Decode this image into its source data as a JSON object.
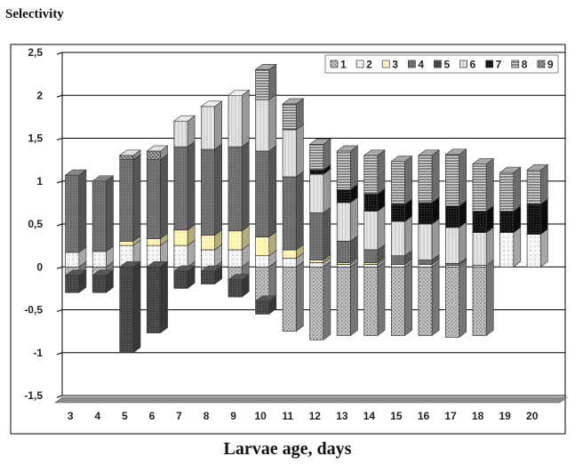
{
  "chart_data": {
    "type": "bar",
    "subtype": "stacked-3d",
    "ylabel": "Selectivity",
    "xlabel": "Larvae age, days",
    "ylim": [
      -1.5,
      2.5
    ],
    "yticks": [
      "-1,5",
      "-1",
      "-0,5",
      "0",
      "0,5",
      "1",
      "1,5",
      "2",
      "2,5"
    ],
    "ytick_values": [
      -1.5,
      -1,
      -0.5,
      0,
      0.5,
      1,
      1.5,
      2,
      2.5
    ],
    "categories": [
      "3",
      "4",
      "5",
      "6",
      "7",
      "8",
      "9",
      "10",
      "11",
      "12",
      "13",
      "14",
      "15",
      "16",
      "17",
      "18",
      "19",
      "20"
    ],
    "grid": true,
    "legend_position": "top-right",
    "legend": [
      "1",
      "2",
      "3",
      "4",
      "5",
      "6",
      "7",
      "8",
      "9"
    ],
    "series": [
      {
        "name": "1",
        "color": "#a9a9a9",
        "values": [
          -0.1,
          -0.1,
          0,
          0,
          -0.05,
          -0.05,
          -0.15,
          -0.4,
          -0.75,
          -0.85,
          -0.8,
          -0.8,
          -0.8,
          -0.8,
          -0.82,
          -0.8,
          0,
          0
        ]
      },
      {
        "name": "2",
        "color": "#eeeeee",
        "values": [
          0.17,
          0.18,
          0.25,
          0.25,
          0.25,
          0.2,
          0.2,
          0.13,
          0.1,
          0.05,
          0.03,
          0.03,
          0.03,
          0.03,
          0.02,
          0.02,
          0.4,
          0.38
        ]
      },
      {
        "name": "3",
        "color": "#fff6b0",
        "values": [
          0,
          0,
          0.05,
          0.08,
          0.18,
          0.17,
          0.22,
          0.22,
          0.1,
          0.03,
          0.02,
          0.02,
          0,
          0,
          0,
          0,
          0,
          0
        ]
      },
      {
        "name": "4",
        "color": "#7a7a7a",
        "values": [
          0.9,
          0.82,
          0.95,
          0.92,
          0.97,
          1.0,
          0.98,
          1.0,
          0.85,
          0.55,
          0.25,
          0.15,
          0.1,
          0.05,
          0.02,
          0,
          0,
          0
        ]
      },
      {
        "name": "5",
        "color": "#4f4f4f",
        "values": [
          -0.2,
          -0.2,
          -1.0,
          -0.77,
          -0.2,
          -0.15,
          -0.2,
          -0.15,
          0,
          0,
          0,
          0,
          0,
          0,
          0,
          0,
          0,
          0
        ]
      },
      {
        "name": "6",
        "color": "#d8d8d8",
        "values": [
          0,
          0,
          0,
          0,
          0.3,
          0.5,
          0.6,
          0.6,
          0.55,
          0.45,
          0.45,
          0.45,
          0.4,
          0.42,
          0.42,
          0.38,
          0,
          0
        ]
      },
      {
        "name": "7",
        "color": "#111111",
        "values": [
          0,
          0,
          0,
          0,
          0,
          0,
          0,
          0,
          0,
          0.05,
          0.15,
          0.2,
          0.2,
          0.25,
          0.25,
          0.25,
          0.25,
          0.35
        ]
      },
      {
        "name": "8",
        "color": "#9a9a9a",
        "values": [
          0,
          0,
          0,
          0,
          0,
          0,
          0,
          0.35,
          0.3,
          0.3,
          0.45,
          0.45,
          0.5,
          0.55,
          0.6,
          0.55,
          0.45,
          0.4
        ]
      },
      {
        "name": "9",
        "color": "#cccccc",
        "values": [
          0,
          0,
          0.05,
          0.1,
          0,
          0,
          0,
          0,
          0,
          0,
          0,
          0,
          0,
          0,
          0,
          0,
          0,
          0
        ]
      }
    ]
  }
}
